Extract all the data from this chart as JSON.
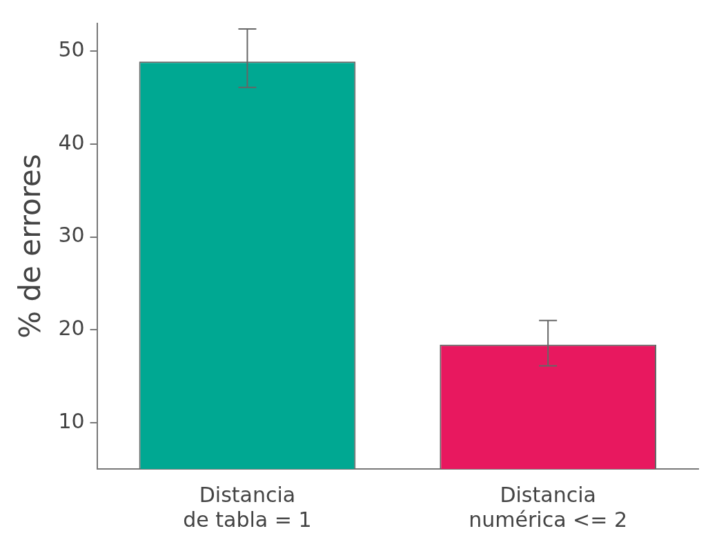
{
  "chart_data": {
    "type": "bar",
    "ylabel": "% de errores",
    "categories": [
      "Distancia\nde tabla = 1",
      "Distancia\nnumérica <= 2"
    ],
    "values": [
      48.9,
      18.4
    ],
    "colors": [
      "#00a892",
      "#e8185f"
    ],
    "errors": [
      [
        46.1,
        52.4
      ],
      [
        16.1,
        21.0
      ]
    ],
    "ylim": [
      5,
      53
    ],
    "yticks": [
      10,
      20,
      30,
      40,
      50
    ],
    "grid": false,
    "legend": false
  }
}
